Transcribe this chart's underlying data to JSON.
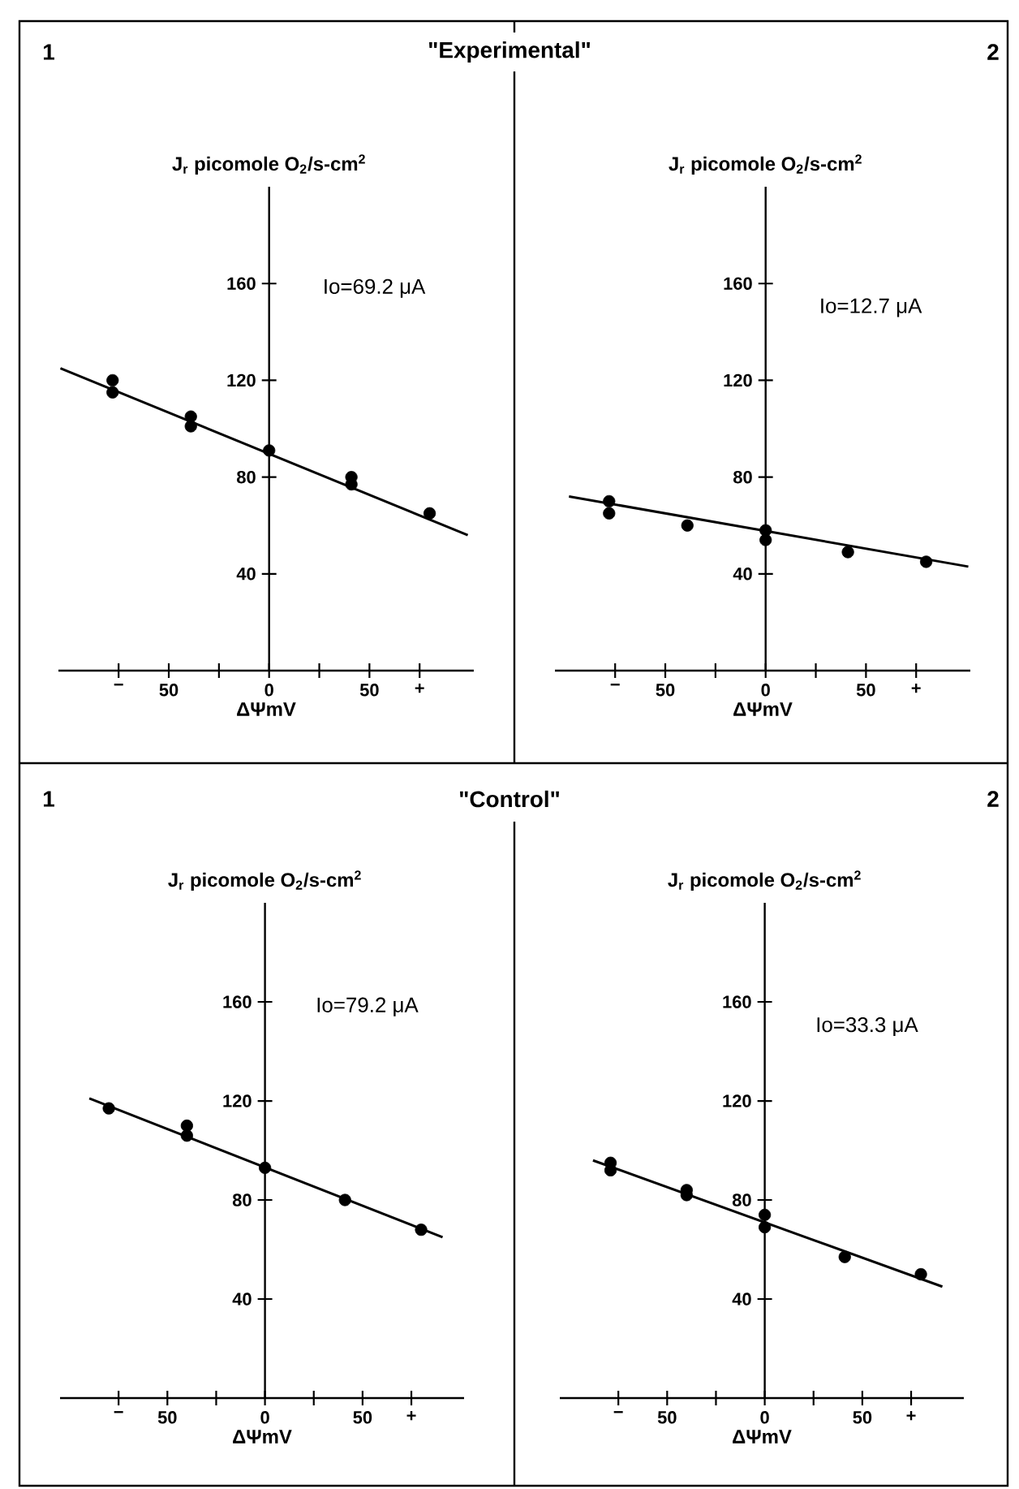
{
  "chart_data": [
    {
      "type": "scatter",
      "title": "\"Experimental\"",
      "xlabel": "ΔΨmV",
      "ylabel": "J$_{r}$ picomole O$_{2}$/s-cm$^{2}$",
      "annotations": [
        "1",
        "Io=69.2 μA"
      ],
      "xlim": [
        -105,
        102
      ],
      "ylim": [
        0,
        200
      ],
      "xticks": [
        {
          "value": -75,
          "label": "−"
        },
        {
          "value": -50,
          "label": "50"
        },
        {
          "value": -25,
          "label": null
        },
        0,
        {
          "value": 25,
          "label": null
        },
        {
          "value": 50,
          "label": "50"
        },
        {
          "value": 75,
          "label": "+"
        }
      ],
      "yticks": [
        40,
        80,
        120,
        160
      ],
      "series": [
        {
          "type": "scatter",
          "marker": "circle",
          "color": "#000000",
          "x": [
            -78,
            -78,
            -39,
            -39,
            0,
            41,
            41,
            80
          ],
          "values": [
            120,
            115,
            105,
            101,
            91,
            80,
            77,
            65
          ]
        },
        {
          "type": "line",
          "color": "#000000",
          "x": [
            -104,
            99
          ],
          "values": [
            125,
            56
          ]
        }
      ]
    },
    {
      "type": "scatter",
      "xlabel": "ΔΨmV",
      "ylabel": "J$_{r}$ picomole O$_{2}$/s-cm$^{2}$",
      "annotations": [
        "2",
        "Io=12.7 μA"
      ],
      "xlim": [
        -105,
        102
      ],
      "ylim": [
        0,
        200
      ],
      "xticks": [
        {
          "value": -75,
          "label": "−"
        },
        {
          "value": -50,
          "label": "50"
        },
        {
          "value": -25,
          "label": null
        },
        0,
        {
          "value": 25,
          "label": null
        },
        {
          "value": 50,
          "label": "50"
        },
        {
          "value": 75,
          "label": "+"
        }
      ],
      "yticks": [
        40,
        80,
        120,
        160
      ],
      "series": [
        {
          "type": "scatter",
          "marker": "circle",
          "color": "#000000",
          "x": [
            -78,
            -78,
            -39,
            0,
            0,
            41,
            80
          ],
          "values": [
            70,
            65,
            60,
            58,
            54,
            49,
            45
          ]
        },
        {
          "type": "line",
          "color": "#000000",
          "x": [
            -98,
            101
          ],
          "values": [
            72,
            43
          ]
        }
      ]
    },
    {
      "type": "scatter",
      "title": "\"Control\"",
      "xlabel": "ΔΨmV",
      "ylabel": "J$_{r}$ picomole O$_{2}$/s-cm$^{2}$",
      "annotations": [
        "1",
        "Io=79.2 μA"
      ],
      "xlim": [
        -105,
        102
      ],
      "ylim": [
        0,
        200
      ],
      "xticks": [
        {
          "value": -75,
          "label": "−"
        },
        {
          "value": -50,
          "label": "50"
        },
        {
          "value": -25,
          "label": null
        },
        0,
        {
          "value": 25,
          "label": null
        },
        {
          "value": 50,
          "label": "50"
        },
        {
          "value": 75,
          "label": "+"
        }
      ],
      "yticks": [
        40,
        80,
        120,
        160
      ],
      "series": [
        {
          "type": "scatter",
          "marker": "circle",
          "color": "#000000",
          "x": [
            -80,
            -40,
            -40,
            0,
            41,
            80
          ],
          "values": [
            117,
            110,
            106,
            93,
            80,
            68
          ]
        },
        {
          "type": "line",
          "color": "#000000",
          "x": [
            -90,
            91
          ],
          "values": [
            121,
            65
          ]
        }
      ]
    },
    {
      "type": "scatter",
      "xlabel": "ΔΨmV",
      "ylabel": "J$_{r}$ picomole O$_{2}$/s-cm$^{2}$",
      "annotations": [
        "2",
        "Io=33.3 μA"
      ],
      "xlim": [
        -105,
        102
      ],
      "ylim": [
        0,
        200
      ],
      "xticks": [
        {
          "value": -75,
          "label": "−"
        },
        {
          "value": -50,
          "label": "50"
        },
        {
          "value": -25,
          "label": null
        },
        0,
        {
          "value": 25,
          "label": null
        },
        {
          "value": 50,
          "label": "50"
        },
        {
          "value": 75,
          "label": "+"
        }
      ],
      "yticks": [
        40,
        80,
        120,
        160
      ],
      "series": [
        {
          "type": "scatter",
          "marker": "circle",
          "color": "#000000",
          "x": [
            -79,
            -79,
            -40,
            -40,
            0,
            0,
            41,
            80
          ],
          "values": [
            95,
            92,
            84,
            82,
            74,
            69,
            57,
            50
          ]
        },
        {
          "type": "line",
          "color": "#000000",
          "x": [
            -88,
            91
          ],
          "values": [
            96,
            45
          ]
        }
      ]
    }
  ]
}
